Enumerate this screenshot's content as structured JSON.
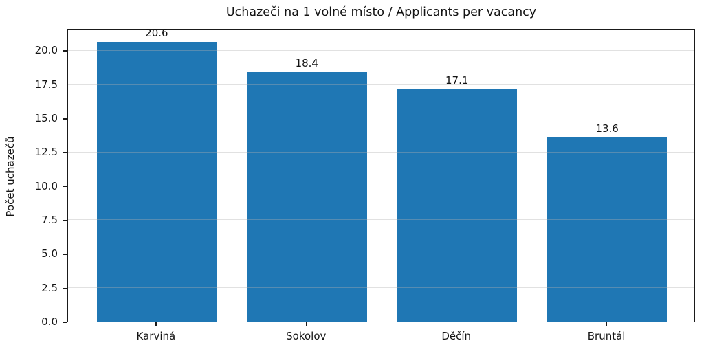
{
  "chart_data": {
    "type": "bar",
    "title": "Uchazeči na 1 volné místo / Applicants per vacancy",
    "xlabel": "",
    "ylabel": "Počet uchazečů",
    "categories": [
      "Karviná",
      "Sokolov",
      "Děčín",
      "Bruntál"
    ],
    "values": [
      20.6,
      18.4,
      17.1,
      13.6
    ],
    "bar_labels": [
      "20.6",
      "18.4",
      "17.1",
      "13.6"
    ],
    "yticks": [
      0.0,
      2.5,
      5.0,
      7.5,
      10.0,
      12.5,
      15.0,
      17.5,
      20.0
    ],
    "ytick_labels": [
      "0.0",
      "2.5",
      "5.0",
      "7.5",
      "10.0",
      "12.5",
      "15.0",
      "17.5",
      "20.0"
    ],
    "ylim": [
      0,
      21.63
    ],
    "xlim": [
      -0.59,
      3.59
    ],
    "bar_width_units": 0.8,
    "grid": true,
    "legend": "none",
    "bar_color": "#1f77b4",
    "grid_color": "#b0b0b0",
    "grid_alpha": 0.38,
    "spine_color": "#1a1a1a",
    "text_color": "#141414"
  }
}
